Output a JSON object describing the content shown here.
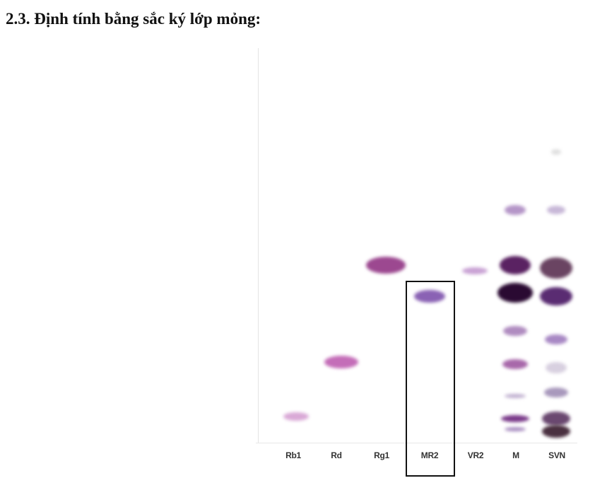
{
  "heading": "2.3. Định tính bằng sắc ký lớp mỏng:",
  "lanes": [
    "Rb1",
    "Rd",
    "Rg1",
    "MR2",
    "VR2",
    "M",
    "SVN"
  ],
  "highlighted_lane": "MR2"
}
